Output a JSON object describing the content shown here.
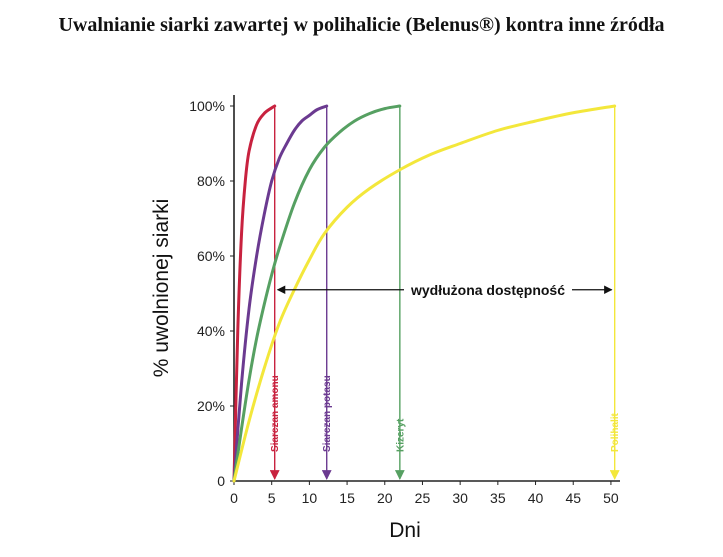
{
  "page": {
    "title": "Uwalnianie siarki zawartej w polihalicie (Belenus®)  kontra inne źródła"
  },
  "chart_data": {
    "type": "line",
    "title": "Uwalnianie siarki zawartej w polihalicie (Belenus®)  kontra inne źródła",
    "xlabel": "Dni",
    "ylabel": "% uwolnionej siarki",
    "xlim": [
      0,
      52
    ],
    "ylim": [
      0,
      100
    ],
    "x_ticks": [
      {
        "value": 0,
        "label": "0"
      },
      {
        "value": 5,
        "label": "5"
      },
      {
        "value": 10,
        "label": "10"
      },
      {
        "value": 15,
        "label": "15"
      },
      {
        "value": 20,
        "label": "20"
      },
      {
        "value": 25,
        "label": "25"
      },
      {
        "value": 30,
        "label": "30"
      },
      {
        "value": 35,
        "label": "35"
      },
      {
        "value": 40,
        "label": "40"
      },
      {
        "value": 45,
        "label": "45"
      },
      {
        "value": 50,
        "label": "50"
      }
    ],
    "y_ticks": [
      {
        "value": 0,
        "label": "0"
      },
      {
        "value": 20,
        "label": "20%"
      },
      {
        "value": 40,
        "label": "40%"
      },
      {
        "value": 60,
        "label": "60%"
      },
      {
        "value": 80,
        "label": "80%"
      },
      {
        "value": 100,
        "label": "100%"
      }
    ],
    "grid": false,
    "legend": "none",
    "series": [
      {
        "name": "Siarczan amonu",
        "color": "#c8223f",
        "x": [
          0,
          0.5,
          1,
          1.5,
          2,
          3,
          4,
          5,
          5.4
        ],
        "y": [
          0,
          40,
          66,
          80,
          88,
          95,
          98,
          99.5,
          100
        ]
      },
      {
        "name": "Siarczan potasu",
        "color": "#6b3a90",
        "x": [
          0,
          1,
          2,
          3,
          4,
          5,
          6,
          7,
          8,
          9,
          10,
          11,
          12.3
        ],
        "y": [
          0,
          26,
          46,
          60,
          71,
          80,
          86,
          90,
          93.5,
          96,
          97.5,
          99,
          100
        ]
      },
      {
        "name": "Kizeryt",
        "color": "#56a062",
        "x": [
          0,
          1,
          2,
          3,
          4,
          5,
          6,
          8,
          10,
          12,
          14,
          16,
          18,
          20,
          22
        ],
        "y": [
          0,
          14,
          27,
          38,
          47,
          55,
          62,
          74,
          83,
          89,
          93,
          96,
          98,
          99.3,
          100
        ]
      },
      {
        "name": "Polihalit",
        "color": "#f3e73b",
        "x": [
          0,
          2,
          4,
          6,
          8,
          10,
          12,
          15,
          18,
          22,
          26,
          30,
          35,
          40,
          45,
          50.5
        ],
        "y": [
          0,
          16,
          30,
          42,
          51,
          59,
          66,
          73,
          78,
          83,
          87,
          90,
          93.5,
          96,
          98.2,
          100
        ]
      }
    ],
    "markers": [
      {
        "label": "Siarczan amonu",
        "x": 5.4,
        "color": "#c8223f"
      },
      {
        "label": "Siarczan potasu",
        "x": 12.3,
        "color": "#6b3a90"
      },
      {
        "label": "Kizeryt",
        "x": 22,
        "color": "#56a062"
      },
      {
        "label": "Polihalit",
        "x": 50.5,
        "color": "#f3e73b"
      }
    ],
    "annotation": {
      "text": "wydłużona dostępność",
      "y": 51,
      "x_start": 5.4,
      "x_end": 50.5
    }
  }
}
